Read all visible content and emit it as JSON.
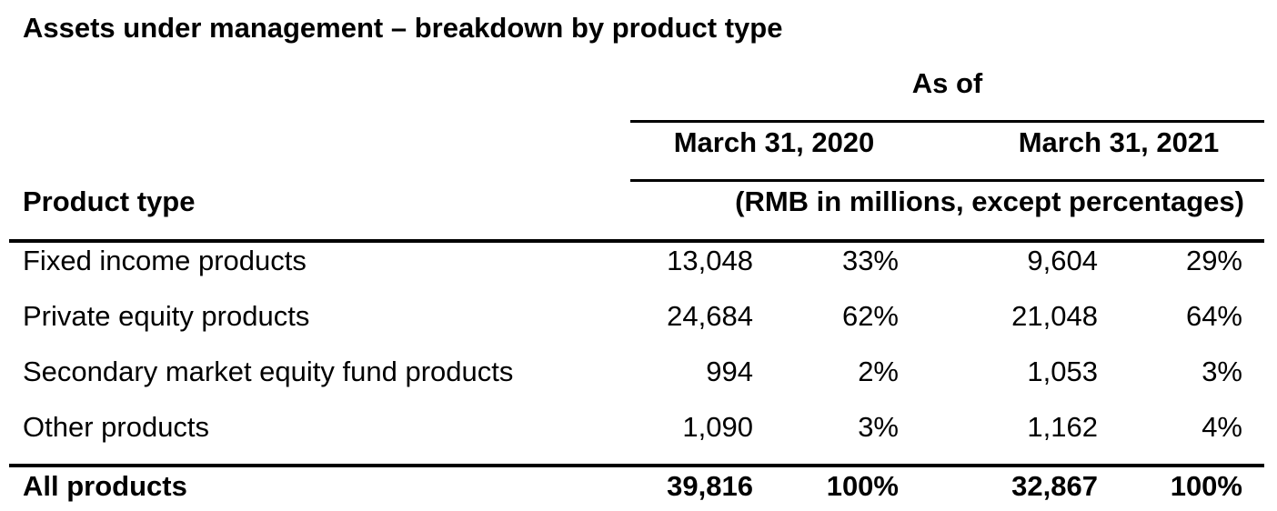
{
  "title": "Assets under management – breakdown by product type",
  "header": {
    "as_of": "As of",
    "dates": [
      "March 31, 2020",
      "March 31, 2021"
    ],
    "product_type": "Product type",
    "units": "(RMB in millions, except percentages)"
  },
  "rows": [
    {
      "label": "Fixed income products",
      "v2020": "13,048",
      "p2020": "33%",
      "v2021": "9,604",
      "p2021": "29%"
    },
    {
      "label": "Private equity products",
      "v2020": "24,684",
      "p2020": "62%",
      "v2021": "21,048",
      "p2021": "64%"
    },
    {
      "label": "Secondary market equity fund products",
      "v2020": "994",
      "p2020": "2%",
      "v2021": "1,053",
      "p2021": "3%"
    },
    {
      "label": "Other products",
      "v2020": "1,090",
      "p2020": "3%",
      "v2021": "1,162",
      "p2021": "4%"
    }
  ],
  "total": {
    "label": "All products",
    "v2020": "39,816",
    "p2020": "100%",
    "v2021": "32,867",
    "p2021": "100%"
  }
}
